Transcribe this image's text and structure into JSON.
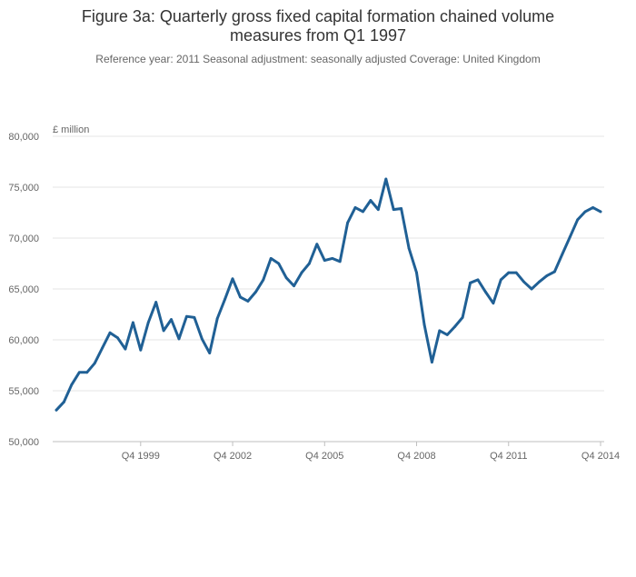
{
  "header": {
    "title": "Figure 3a: Quarterly gross fixed capital formation chained volume measures from Q1 1997",
    "subtitle": "Reference year: 2011 Seasonal adjustment: seasonally adjusted Coverage: United Kingdom"
  },
  "chart_data": {
    "type": "line",
    "title": "Figure 3a: Quarterly gross fixed capital formation chained volume measures from Q1 1997",
    "subtitle": "Reference year: 2011 Seasonal adjustment: seasonally adjusted Coverage: United Kingdom",
    "xlabel": "",
    "ylabel": "£ million",
    "ylim": [
      50000,
      80000
    ],
    "yticks": [
      50000,
      55000,
      60000,
      65000,
      70000,
      75000,
      80000
    ],
    "ytick_labels": [
      "50,000",
      "55,000",
      "60,000",
      "65,000",
      "70,000",
      "75,000",
      "80,000"
    ],
    "xtick_labels": [
      "Q4 1999",
      "Q4 2002",
      "Q4 2005",
      "Q4 2008",
      "Q4 2011",
      "Q4 2014"
    ],
    "xtick_positions": [
      "1999 Q4",
      "2002 Q4",
      "2005 Q4",
      "2008 Q4",
      "2011 Q4",
      "2014 Q4"
    ],
    "grid": true,
    "line_color": "#206095",
    "series": [
      {
        "x": [
          "1997 Q1",
          "1997 Q2",
          "1997 Q3",
          "1997 Q4",
          "1998 Q1",
          "1998 Q2",
          "1998 Q3",
          "1998 Q4",
          "1999 Q1",
          "1999 Q2",
          "1999 Q3",
          "1999 Q4",
          "2000 Q1",
          "2000 Q2",
          "2000 Q3",
          "2000 Q4",
          "2001 Q1",
          "2001 Q2",
          "2001 Q3",
          "2001 Q4",
          "2002 Q1",
          "2002 Q2",
          "2002 Q3",
          "2002 Q4",
          "2003 Q1",
          "2003 Q2",
          "2003 Q3",
          "2003 Q4",
          "2004 Q1",
          "2004 Q2",
          "2004 Q3",
          "2004 Q4",
          "2005 Q1",
          "2005 Q2",
          "2005 Q3",
          "2005 Q4",
          "2006 Q1",
          "2006 Q2",
          "2006 Q3",
          "2006 Q4",
          "2007 Q1",
          "2007 Q2",
          "2007 Q3",
          "2007 Q4",
          "2008 Q1",
          "2008 Q2",
          "2008 Q3",
          "2008 Q4",
          "2009 Q1",
          "2009 Q2",
          "2009 Q3",
          "2009 Q4",
          "2010 Q1",
          "2010 Q2",
          "2010 Q3",
          "2010 Q4",
          "2011 Q1",
          "2011 Q2",
          "2011 Q3",
          "2011 Q4",
          "2012 Q1",
          "2012 Q2",
          "2012 Q3",
          "2012 Q4",
          "2013 Q1",
          "2013 Q2",
          "2013 Q3",
          "2013 Q4",
          "2014 Q1",
          "2014 Q2",
          "2014 Q3",
          "2014 Q4"
        ],
        "values": [
          53100,
          53900,
          55600,
          56800,
          56800,
          57700,
          59200,
          60700,
          60200,
          59100,
          61700,
          59000,
          61700,
          63700,
          60900,
          62000,
          60100,
          62300,
          62200,
          60100,
          58700,
          62100,
          64000,
          66000,
          64200,
          63800,
          64700,
          65900,
          68000,
          67500,
          66100,
          65300,
          66600,
          67500,
          69400,
          67800,
          68000,
          67700,
          71500,
          73000,
          72600,
          73700,
          72800,
          75800,
          72800,
          72900,
          69000,
          66600,
          61500,
          57800,
          60900,
          60500,
          61300,
          62200,
          65600,
          65900,
          64700,
          63600,
          65900,
          66600,
          66600,
          65700,
          65000,
          65700,
          66300,
          66700,
          68400,
          70100,
          71800,
          72600,
          73000,
          72600
        ]
      }
    ]
  }
}
